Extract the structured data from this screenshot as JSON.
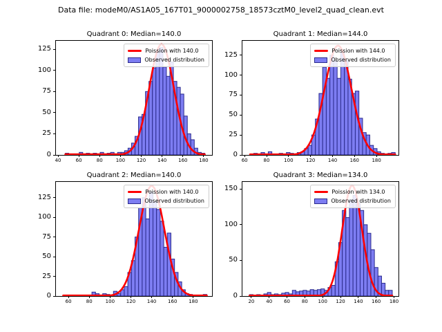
{
  "figure": {
    "suptitle": "Data file: modeM0/AS1A05_167T01_9000002758_18573cztM0_level2_quad_clean.evt",
    "colors": {
      "bar_fill": "#7d7df2",
      "bar_edge": "#2b2b8c",
      "curve": "#ff0000",
      "legend_border": "#cccccc",
      "axes_frame": "#000000"
    }
  },
  "chart_data": [
    {
      "type": "bar",
      "title": "Quadrant 0: Median=140.0",
      "median": 140.0,
      "legend": [
        "Poission with 140.0",
        "Observed distribution"
      ],
      "legend_position": "upper right",
      "grid": false,
      "xlim": [
        38,
        188
      ],
      "ylim": [
        0,
        135
      ],
      "xticks": [
        40,
        60,
        80,
        100,
        120,
        140,
        160,
        180
      ],
      "yticks": [
        0,
        25,
        50,
        75,
        100,
        125
      ],
      "bins": {
        "start": 47,
        "width": 3.35
      },
      "counts": [
        2,
        0,
        0,
        0,
        3,
        0,
        2,
        0,
        2,
        0,
        3,
        0,
        2,
        3,
        0,
        3,
        3,
        5,
        8,
        14,
        22,
        45,
        48,
        75,
        87,
        103,
        122,
        127,
        104,
        93,
        110,
        87,
        80,
        72,
        46,
        25,
        18,
        8,
        3,
        2
      ],
      "fit_curve": {
        "type": "poisson",
        "lambda": 140.0,
        "mean": 139.5,
        "sigma": 11.8,
        "peak": 131
      }
    },
    {
      "type": "bar",
      "title": "Quadrant 1: Median=144.0",
      "median": 144.0,
      "legend": [
        "Poission with 144.0",
        "Observed distribution"
      ],
      "legend_position": "upper right",
      "grid": false,
      "xlim": [
        58,
        200
      ],
      "ylim": [
        0,
        143
      ],
      "xticks": [
        60,
        80,
        100,
        120,
        140,
        160,
        180
      ],
      "yticks": [
        0,
        25,
        50,
        75,
        100,
        125
      ],
      "bins": {
        "start": 65,
        "width": 3.3
      },
      "counts": [
        0,
        2,
        0,
        3,
        0,
        4,
        0,
        0,
        2,
        0,
        3,
        2,
        0,
        3,
        4,
        8,
        12,
        25,
        45,
        77,
        110,
        96,
        125,
        118,
        96,
        128,
        118,
        95,
        77,
        80,
        46,
        28,
        25,
        12,
        8,
        4,
        2,
        0,
        2,
        3
      ],
      "fit_curve": {
        "type": "poisson",
        "lambda": 144.0,
        "mean": 145.0,
        "sigma": 12.2,
        "peak": 137
      }
    },
    {
      "type": "bar",
      "title": "Quadrant 2: Median=140.0",
      "median": 140.0,
      "legend": [
        "Poission with 140.0",
        "Observed distribution"
      ],
      "legend_position": "upper right",
      "grid": false,
      "xlim": [
        48,
        198
      ],
      "ylim": [
        0,
        145
      ],
      "xticks": [
        60,
        80,
        100,
        120,
        140,
        160,
        180
      ],
      "yticks": [
        0,
        25,
        50,
        75,
        100,
        125
      ],
      "bins": {
        "start": 55,
        "width": 3.45
      },
      "counts": [
        0,
        0,
        0,
        0,
        0,
        0,
        0,
        0,
        5,
        3,
        0,
        3,
        2,
        0,
        6,
        3,
        8,
        12,
        30,
        45,
        75,
        112,
        125,
        98,
        132,
        120,
        110,
        95,
        62,
        80,
        47,
        30,
        18,
        8,
        3,
        2,
        0,
        0,
        0,
        2
      ],
      "fit_curve": {
        "type": "poisson",
        "lambda": 140.0,
        "mean": 140.0,
        "sigma": 12.2,
        "peak": 140
      }
    },
    {
      "type": "bar",
      "title": "Quadrant 3: Median=134.0",
      "median": 134.0,
      "legend": [
        "Poission with 134.0",
        "Observed distribution"
      ],
      "legend_position": "upper right",
      "grid": false,
      "xlim": [
        10,
        185
      ],
      "ylim": [
        0,
        160
      ],
      "xticks": [
        20,
        40,
        60,
        80,
        100,
        120,
        140,
        160,
        180
      ],
      "yticks": [
        0,
        50,
        100,
        150
      ],
      "bins": {
        "start": 18,
        "width": 4.0
      },
      "counts": [
        2,
        0,
        2,
        0,
        3,
        5,
        2,
        3,
        2,
        4,
        5,
        3,
        8,
        6,
        7,
        8,
        7,
        9,
        8,
        9,
        10,
        8,
        12,
        15,
        48,
        75,
        120,
        110,
        135,
        141,
        130,
        120,
        100,
        88,
        65,
        40,
        28,
        18,
        8,
        8
      ],
      "fit_curve": {
        "type": "poisson",
        "lambda": 134.0,
        "mean": 133.0,
        "sigma": 11.0,
        "peak": 155
      }
    }
  ]
}
